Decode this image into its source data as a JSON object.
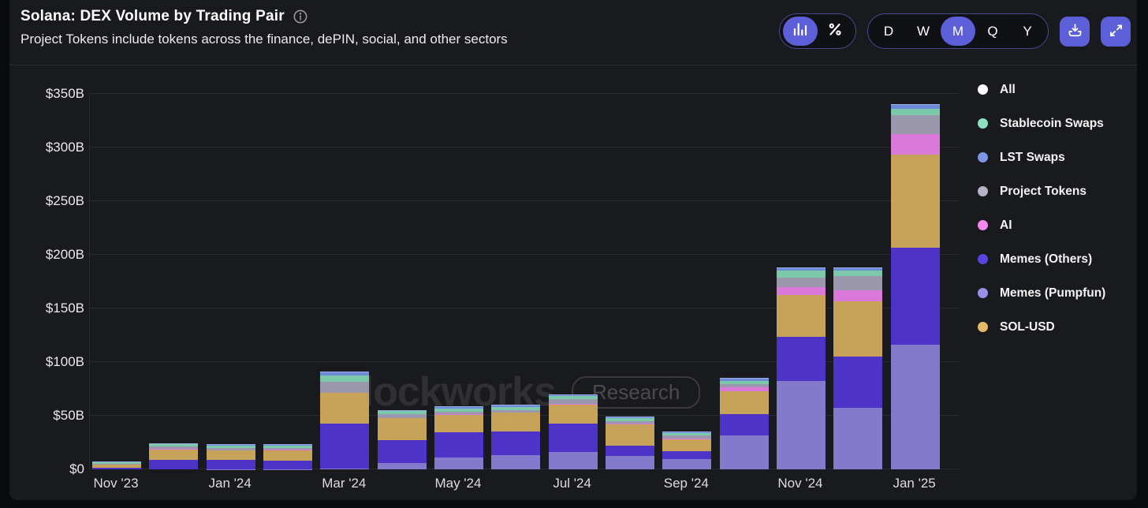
{
  "header": {
    "title": "Solana: DEX Volume by Trading Pair",
    "subtitle": "Project Tokens include tokens across the finance, dePIN, social, and other sectors"
  },
  "controls": {
    "view_toggle": {
      "options": [
        "bar-chart",
        "percent"
      ],
      "active": "bar-chart"
    },
    "intervals": {
      "options": [
        "D",
        "W",
        "M",
        "Q",
        "Y"
      ],
      "active": "M"
    },
    "accent_color": "#5c5fd8"
  },
  "legend": {
    "items": [
      {
        "label": "All",
        "color": "#ffffff"
      },
      {
        "label": "Stablecoin Swaps",
        "color": "#8fe0bd"
      },
      {
        "label": "LST Swaps",
        "color": "#7d97e8"
      },
      {
        "label": "Project Tokens",
        "color": "#b6b3c7"
      },
      {
        "label": "AI",
        "color": "#f288ec"
      },
      {
        "label": "Memes (Others)",
        "color": "#5a43df"
      },
      {
        "label": "Memes (Pumpfun)",
        "color": "#9c8fe8"
      },
      {
        "label": "SOL-USD",
        "color": "#e3b869"
      }
    ]
  },
  "watermark": {
    "brand": "Blockworks",
    "badge": "Research"
  },
  "chart_data": {
    "type": "bar",
    "stacked": true,
    "title": "Solana: DEX Volume by Trading Pair",
    "unit": "USD billions",
    "ylim": [
      0,
      350
    ],
    "grid": true,
    "legend_position": "right",
    "y_ticks": [
      "$0",
      "$50B",
      "$100B",
      "$150B",
      "$200B",
      "$250B",
      "$300B",
      "$350B"
    ],
    "categories": [
      "Nov '23",
      "Dec '23",
      "Jan '24",
      "Feb '24",
      "Mar '24",
      "Apr '24",
      "May '24",
      "Jun '24",
      "Jul '24",
      "Aug '24",
      "Sep '24",
      "Oct '24",
      "Nov '24",
      "Dec '24",
      "Jan '25"
    ],
    "x_tick_labels": [
      "Nov '23",
      "Jan '24",
      "Mar '24",
      "May '24",
      "Jul '24",
      "Sep '24",
      "Nov '24",
      "Jan '25"
    ],
    "x_tick_bar_indices": [
      0,
      2,
      4,
      6,
      8,
      10,
      12,
      14
    ],
    "series": [
      {
        "name": "Memes (Pumpfun)",
        "color": "#837acd",
        "values": [
          0,
          0,
          0.1,
          0.3,
          0.5,
          6,
          11,
          13.5,
          16,
          12.3,
          9.8,
          31.8,
          82,
          57.6,
          116
        ]
      },
      {
        "name": "Memes (Others)",
        "color": "#4e33c8",
        "values": [
          1.5,
          8.5,
          8.8,
          8,
          42.5,
          21,
          23.5,
          22,
          27,
          9.8,
          7.4,
          19.6,
          41.6,
          47.8,
          91
        ]
      },
      {
        "name": "SOL-USD",
        "color": "#c7a259",
        "values": [
          3.2,
          10,
          8.6,
          9.5,
          28,
          20.5,
          16.5,
          17.2,
          17.6,
          19.6,
          11,
          21.3,
          39,
          51.5,
          86.5
        ]
      },
      {
        "name": "AI",
        "color": "#da79da",
        "values": [
          0.1,
          0.3,
          0.1,
          0.3,
          0.5,
          0.4,
          0.5,
          0.6,
          0.6,
          0.8,
          0.5,
          3.9,
          7.4,
          9.9,
          19
        ]
      },
      {
        "name": "Project Tokens",
        "color": "#9b97ad",
        "values": [
          0.6,
          2.4,
          2,
          2,
          10,
          3.6,
          2.5,
          2.2,
          4.5,
          2.4,
          2.6,
          2.5,
          8.5,
          13.5,
          18
        ]
      },
      {
        "name": "Stablecoin Swaps",
        "color": "#7cc8ab",
        "values": [
          0.9,
          2.2,
          2.5,
          2.3,
          6,
          2.7,
          2.5,
          2.5,
          2.8,
          2.6,
          2.2,
          3.4,
          7,
          5,
          5.5
        ]
      },
      {
        "name": "LST Swaps",
        "color": "#6e8bd9",
        "values": [
          0.4,
          1.2,
          1.5,
          1.1,
          3.5,
          1.3,
          2.5,
          2,
          1.5,
          1.5,
          1.5,
          2.7,
          3,
          2.7,
          4.5
        ]
      }
    ]
  }
}
